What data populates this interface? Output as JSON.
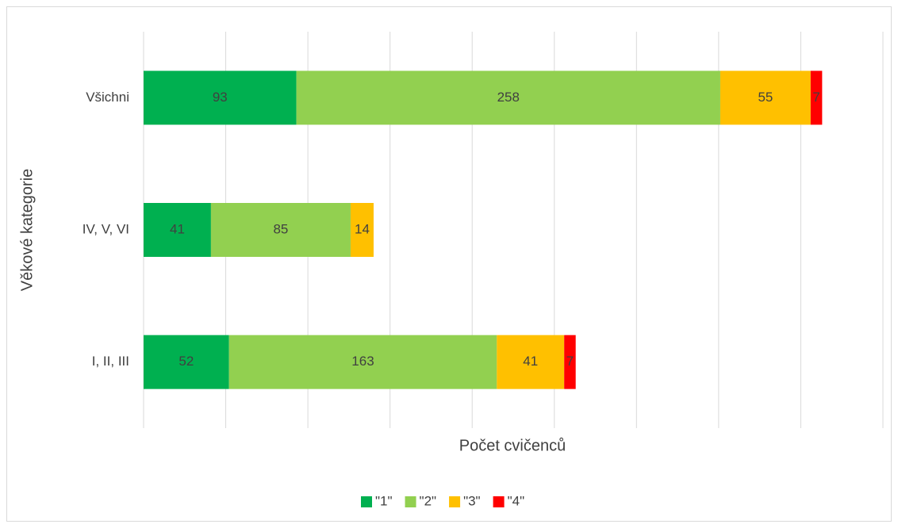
{
  "chart_data": {
    "type": "stacked-barh",
    "xlabel": "Počet cvičenců",
    "ylabel": "Věkové kategorie",
    "categories": [
      "Všichni",
      "IV, V, VI",
      "I, II, III"
    ],
    "series": [
      {
        "name": "\"1\"",
        "color": "#00b050",
        "values": [
          93,
          41,
          52
        ]
      },
      {
        "name": "\"2\"",
        "color": "#92d050",
        "values": [
          258,
          85,
          163
        ]
      },
      {
        "name": "\"3\"",
        "color": "#ffc000",
        "values": [
          55,
          14,
          41
        ]
      },
      {
        "name": "\"4\"",
        "color": "#ff0000",
        "values": [
          7,
          0,
          7
        ]
      }
    ],
    "xlim": [
      0,
      450
    ],
    "xticks": [
      0,
      50,
      100,
      150,
      200,
      250,
      300,
      350,
      400,
      450
    ],
    "grid": true,
    "legend": "bottom"
  }
}
